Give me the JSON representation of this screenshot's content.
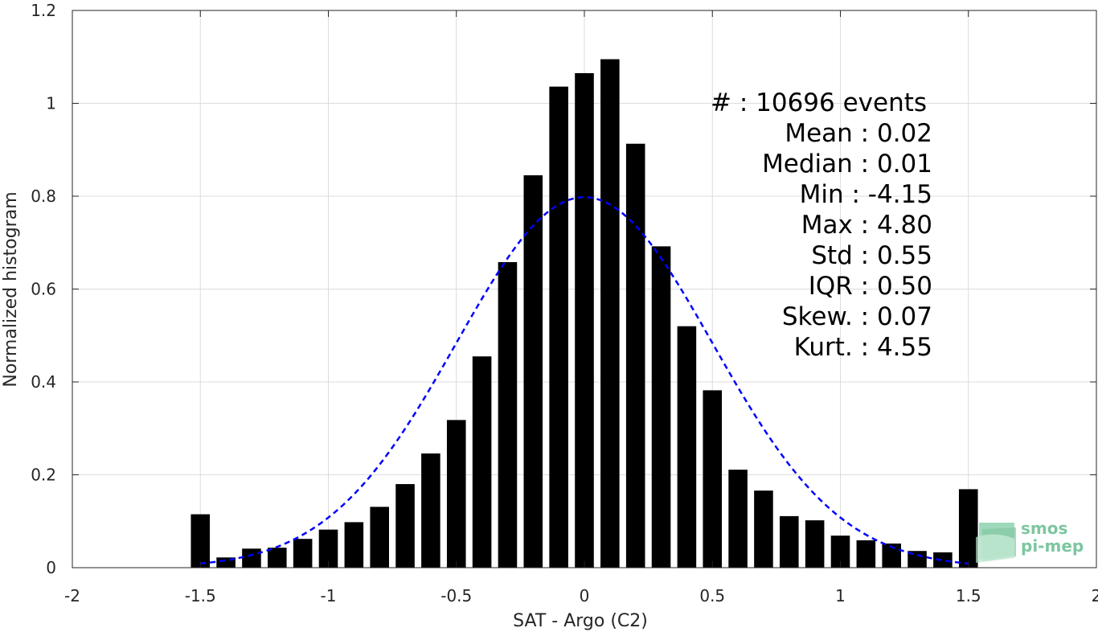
{
  "chart_data": {
    "type": "bar",
    "title": "",
    "xlabel": "SAT - Argo (C2)",
    "ylabel": "Normalized histogram",
    "xlim": [
      -2,
      2
    ],
    "ylim": [
      0,
      1.2
    ],
    "xticks": [
      "-2",
      "-1.5",
      "-1",
      "-0.5",
      "0",
      "0.5",
      "1",
      "1.5",
      "2"
    ],
    "yticks": [
      "0",
      "0.2",
      "0.4",
      "0.6",
      "0.8",
      "1",
      "1.2"
    ],
    "grid": true,
    "x": [
      -1.5,
      -1.4,
      -1.3,
      -1.2,
      -1.1,
      -1.0,
      -0.9,
      -0.8,
      -0.7,
      -0.6,
      -0.5,
      -0.4,
      -0.3,
      -0.2,
      -0.1,
      0.0,
      0.1,
      0.2,
      0.3,
      0.4,
      0.5,
      0.6,
      0.7,
      0.8,
      0.9,
      1.0,
      1.1,
      1.2,
      1.3,
      1.4,
      1.5
    ],
    "values": [
      0.115,
      0.022,
      0.041,
      0.043,
      0.062,
      0.082,
      0.098,
      0.131,
      0.18,
      0.246,
      0.318,
      0.455,
      0.658,
      0.845,
      1.036,
      1.065,
      1.095,
      0.913,
      0.692,
      0.52,
      0.382,
      0.211,
      0.166,
      0.111,
      0.102,
      0.069,
      0.059,
      0.052,
      0.036,
      0.033,
      0.169
    ],
    "bar_color": "#000000",
    "fit_curve": {
      "style": "dashed",
      "color": "#0000ff",
      "mean": 0.0,
      "std": 0.5,
      "x_range": [
        -1.5,
        1.5
      ]
    },
    "stats": [
      "#  : 10696 events",
      "Mean : 0.02",
      "Median : 0.01",
      "Min : -4.15",
      "Max : 4.80",
      "Std : 0.55",
      "IQR : 0.50",
      "Skew. : 0.07",
      "Kurt. : 4.55"
    ]
  },
  "logo": {
    "line1": "smos",
    "line2": "pi-mep",
    "color": "#7cc6a0"
  }
}
